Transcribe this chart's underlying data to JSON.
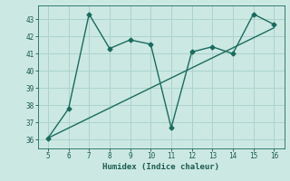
{
  "x": [
    5,
    6,
    7,
    8,
    9,
    10,
    11,
    12,
    13,
    14,
    15,
    16
  ],
  "y": [
    36.1,
    37.8,
    43.3,
    41.3,
    41.8,
    41.55,
    36.7,
    41.1,
    41.4,
    41.0,
    43.3,
    42.7
  ],
  "trend_x": [
    5,
    16
  ],
  "trend_y": [
    36.1,
    42.5
  ],
  "line_color": "#1a6b5e",
  "bg_color": "#cce8e3",
  "grid_color": "#aad4cc",
  "xlabel": "Humidex (Indice chaleur)",
  "xlim": [
    4.5,
    16.5
  ],
  "ylim": [
    35.5,
    43.8
  ],
  "xticks": [
    5,
    6,
    7,
    8,
    9,
    10,
    11,
    12,
    13,
    14,
    15,
    16
  ],
  "yticks": [
    36,
    37,
    38,
    39,
    40,
    41,
    42,
    43
  ],
  "marker": "D",
  "markersize": 2.5,
  "linewidth": 1.0,
  "font_color": "#1a5c50",
  "tick_fontsize": 5.5,
  "xlabel_fontsize": 6.5
}
